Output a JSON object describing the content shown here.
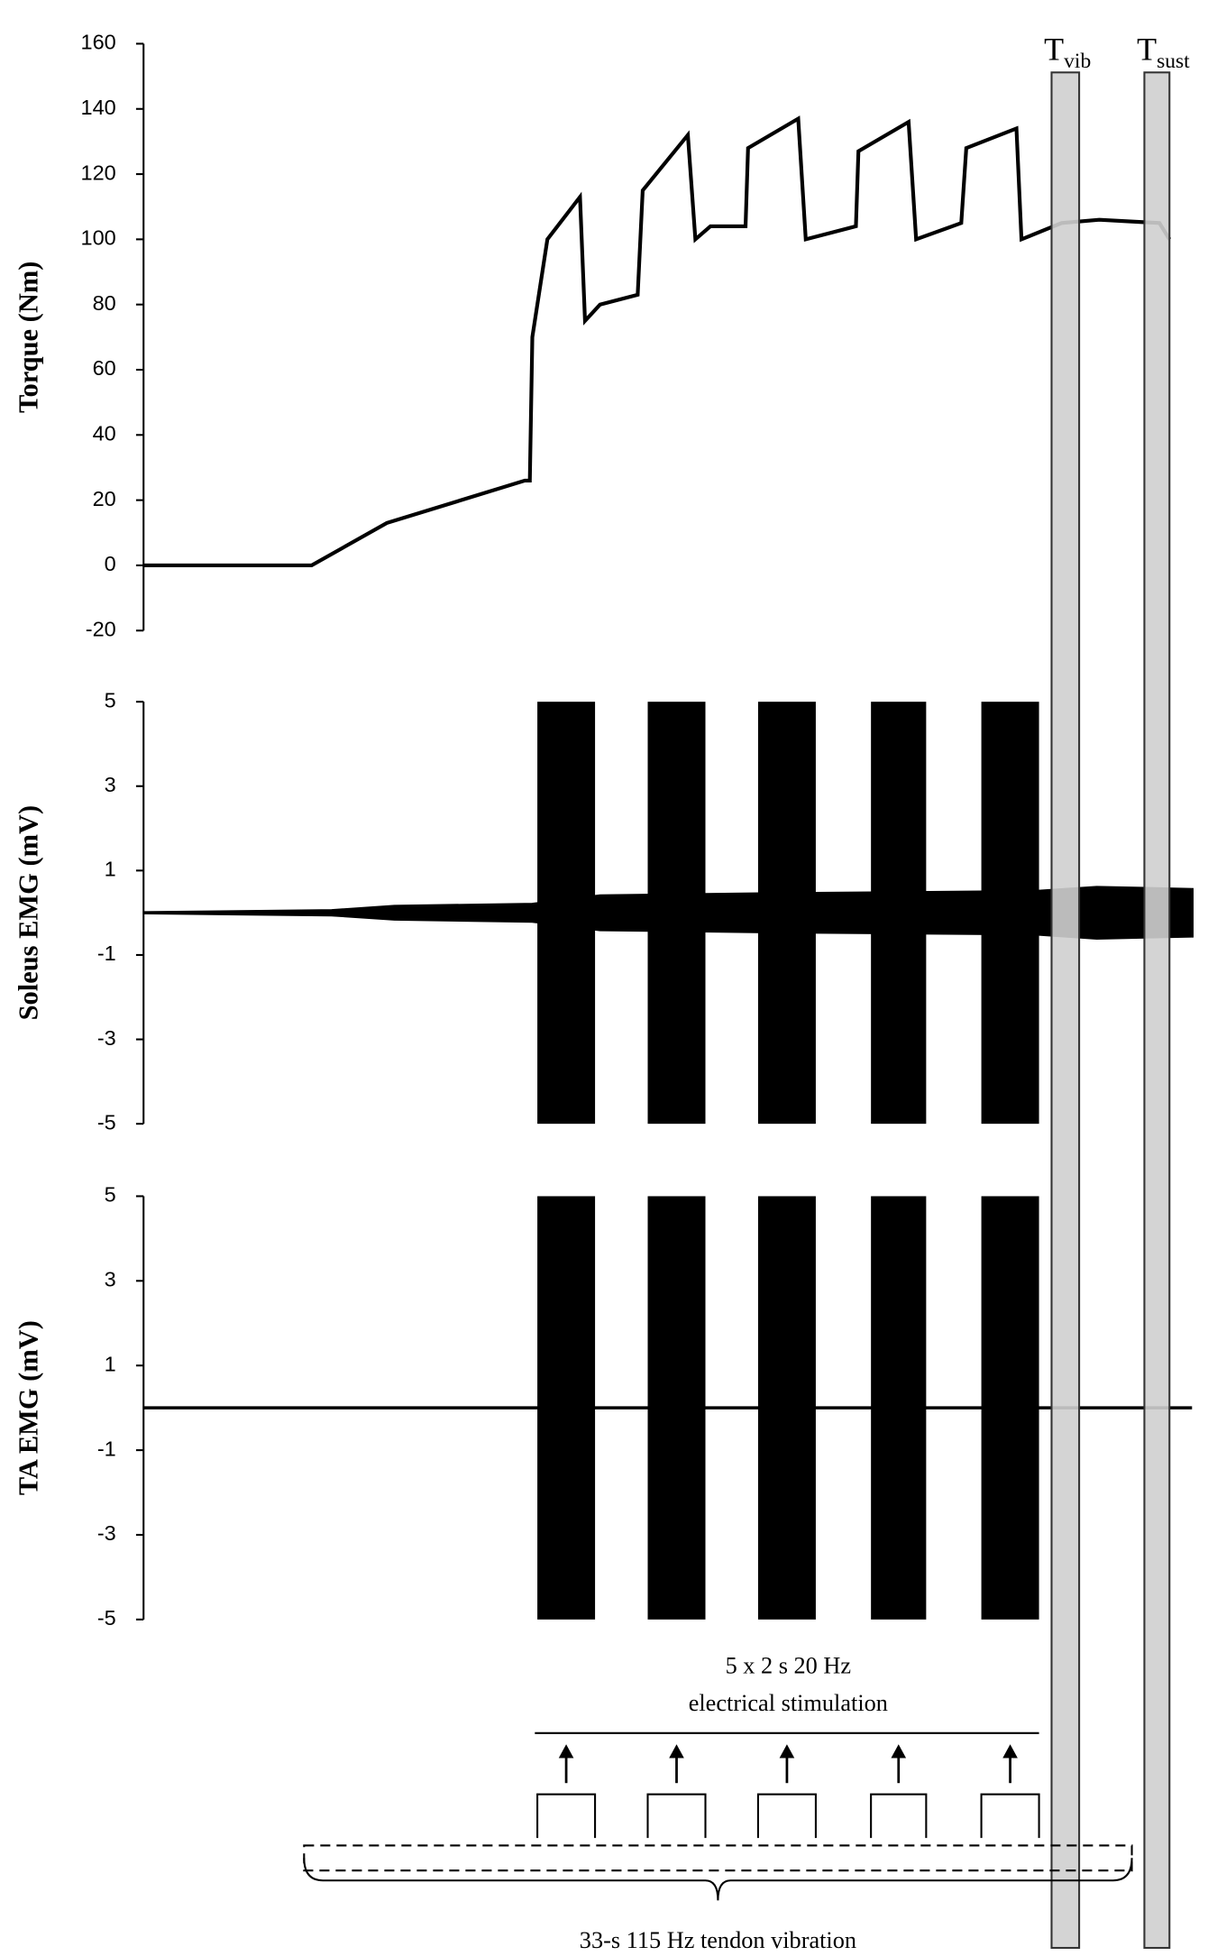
{
  "chart_data": [
    {
      "type": "line",
      "ylabel": "Torque (Nm)",
      "ylim": [
        -20,
        160
      ],
      "yticks": [
        -20,
        0,
        20,
        40,
        60,
        80,
        100,
        120,
        140,
        160
      ],
      "xlim": [
        0,
        41.8
      ],
      "color": "#000000",
      "x": [
        0,
        6.7,
        9.7,
        15.2,
        15.4,
        15.5,
        16.1,
        17.4,
        17.6,
        18.2,
        19.7,
        19.9,
        21.7,
        22.0,
        22.6,
        24.0,
        24.1,
        26.1,
        26.4,
        28.4,
        28.5,
        30.5,
        30.8,
        32.6,
        32.8,
        34.8,
        35.0,
        36.6,
        38.1,
        40.5,
        40.9
      ],
      "values": [
        0,
        0,
        13,
        26,
        26,
        70,
        100,
        113,
        75,
        80,
        83,
        115,
        132,
        100,
        104,
        104,
        128,
        137,
        100,
        104,
        127,
        136,
        100,
        105,
        128,
        134,
        100,
        105,
        106,
        105,
        100
      ]
    },
    {
      "type": "emg",
      "ylabel": "Soleus EMG (mV)",
      "ylim": [
        -5,
        5
      ],
      "yticks": [
        -5,
        -3,
        -1,
        1,
        3,
        5
      ],
      "xlim": [
        0,
        41.8
      ],
      "color": "#000000",
      "burst_amplitude": 5,
      "x": [
        0,
        7.5,
        10,
        15.5,
        18.2,
        25,
        35.5,
        38,
        41.8
      ],
      "values": [
        0,
        0.05,
        0.15,
        0.2,
        0.4,
        0.45,
        0.5,
        0.6,
        0.55
      ]
    },
    {
      "type": "emg",
      "ylabel": "TA EMG (mV)",
      "ylim": [
        -5,
        5
      ],
      "yticks": [
        -5,
        -3,
        -1,
        1,
        3,
        5
      ],
      "xlim": [
        0,
        41.8
      ],
      "color": "#000000",
      "burst_amplitude": 5,
      "x": [
        0,
        41.8
      ],
      "values": [
        0,
        0
      ]
    }
  ],
  "stimulation": {
    "label_lines": [
      "5 x 2 s 20 Hz",
      "electrical stimulation"
    ],
    "windows": [
      [
        15.7,
        18.0
      ],
      [
        20.1,
        22.4
      ],
      [
        24.5,
        26.8
      ],
      [
        29.0,
        31.2
      ],
      [
        33.4,
        35.7
      ]
    ]
  },
  "vibration": {
    "label": "33-s 115 Hz tendon vibration",
    "window": [
      6.4,
      39.4
    ]
  },
  "measure_windows": [
    {
      "label": "T",
      "sub": "vib",
      "window": [
        36.2,
        37.3
      ]
    },
    {
      "label": "T",
      "sub": "sust",
      "window": [
        39.9,
        40.9
      ]
    }
  ]
}
